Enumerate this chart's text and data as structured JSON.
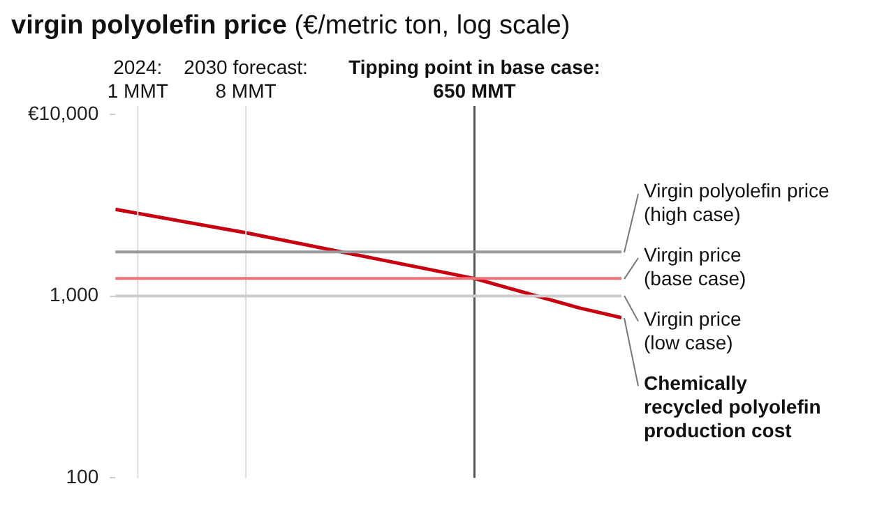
{
  "chart_data": {
    "type": "line",
    "title": "virgin polyolefin price",
    "ylabel": "(€/metric ton, log scale)",
    "x": [
      0.65,
      8,
      650,
      4900,
      11000
    ],
    "series": [
      {
        "name": "Chemically\nrecycled polyolefin\nproduction cost",
        "color": "#c8000f",
        "values": [
          3000,
          2230,
          1250,
          860,
          760
        ]
      }
    ],
    "log": "xy",
    "xlim": [
      0.65,
      11000
    ],
    "ylim": [
      100,
      10000
    ],
    "yticks": [
      {
        "value": 100,
        "label": "100"
      },
      {
        "value": 1000,
        "label": "1,000"
      },
      {
        "value": 10000,
        "label": "€10,000"
      }
    ],
    "tick_labels": "y",
    "grid": false,
    "legend": false,
    "marker": "none",
    "line_style": "solid",
    "ref_lines": [
      {
        "axis": "x",
        "value": 1,
        "label": "2024:\n1 MMT",
        "color": "#dddddd"
      },
      {
        "axis": "x",
        "value": 8,
        "label": "2030 forecast:\n8 MMT",
        "color": "#dddddd"
      },
      {
        "axis": "x",
        "value": 650,
        "label": "Tipping point in base case:\n650 MMT",
        "color": "#555555"
      },
      {
        "axis": "y",
        "value": 1750,
        "label": "Virgin polyolefin price\n(high case)",
        "color": "#999999"
      },
      {
        "axis": "y",
        "value": 1250,
        "label": "Virgin price\n(base case)",
        "color": "#f07078"
      },
      {
        "axis": "y",
        "value": 1000,
        "label": "Virgin price\n(low case)",
        "color": "#cccccc"
      }
    ]
  }
}
